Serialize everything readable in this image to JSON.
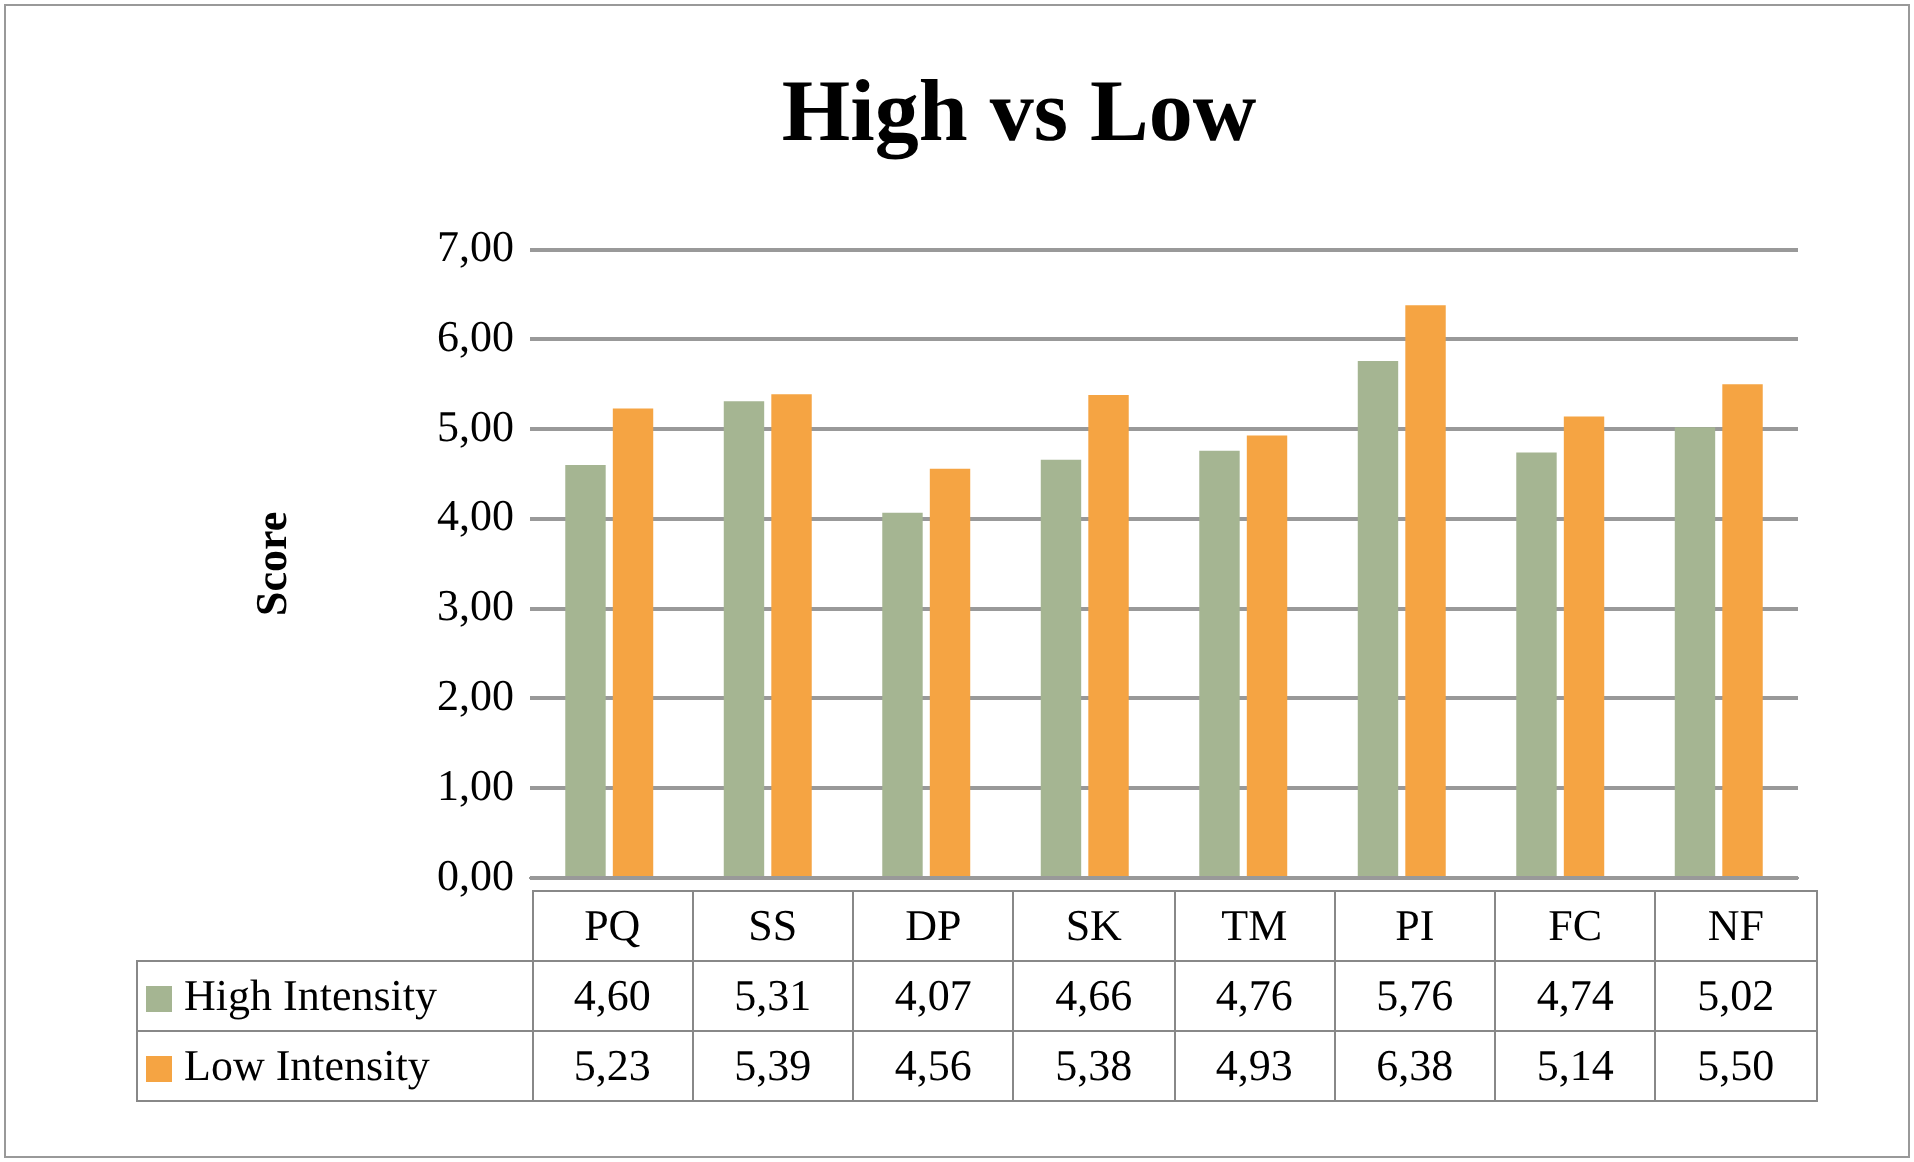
{
  "chart_data": {
    "type": "bar",
    "title": "High vs Low",
    "ylabel": "Score",
    "categories": [
      "PQ",
      "SS",
      "DP",
      "SK",
      "TM",
      "PI",
      "FC",
      "NF"
    ],
    "series": [
      {
        "name": "High Intensity",
        "color": "#a5b592",
        "values": [
          4.6,
          5.31,
          4.07,
          4.66,
          4.76,
          5.76,
          4.74,
          5.02
        ],
        "value_labels": [
          "4,60",
          "5,31",
          "4,07",
          "4,66",
          "4,76",
          "5,76",
          "4,74",
          "5,02"
        ]
      },
      {
        "name": "Low Intensity",
        "color": "#f5a443",
        "values": [
          5.23,
          5.39,
          4.56,
          5.38,
          4.93,
          6.38,
          5.14,
          5.5
        ],
        "value_labels": [
          "5,23",
          "5,39",
          "4,56",
          "5,38",
          "4,93",
          "6,38",
          "5,14",
          "5,50"
        ]
      }
    ],
    "ylim": [
      0,
      7
    ],
    "yticks": [
      {
        "value": 0,
        "label": "0,00"
      },
      {
        "value": 1,
        "label": "1,00"
      },
      {
        "value": 2,
        "label": "2,00"
      },
      {
        "value": 3,
        "label": "3,00"
      },
      {
        "value": 4,
        "label": "4,00"
      },
      {
        "value": 5,
        "label": "5,00"
      },
      {
        "value": 6,
        "label": "6,00"
      },
      {
        "value": 7,
        "label": "7,00"
      }
    ],
    "grid": "y",
    "legend": "bottom"
  }
}
